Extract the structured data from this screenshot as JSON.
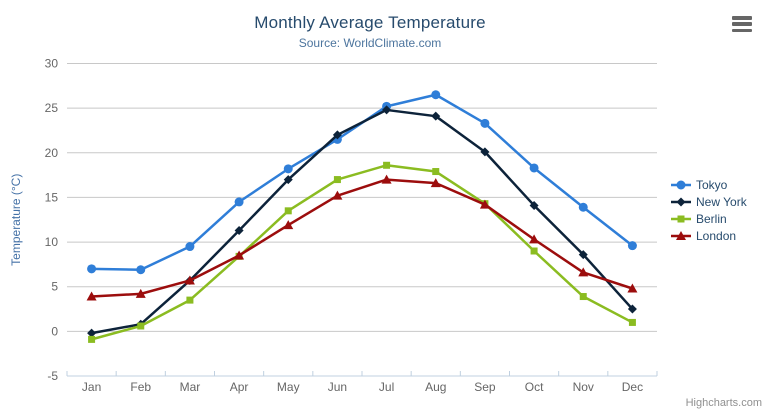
{
  "header": {
    "title": "Monthly Average Temperature",
    "subtitle": "Source: WorldClimate.com"
  },
  "credits": {
    "label": "Highcharts.com"
  },
  "context_menu": {
    "icon": "hamburger-icon"
  },
  "theme": {
    "background": "#ffffff",
    "title_color": "#274b6d",
    "subtitle_color": "#4d759e",
    "axis_label_color": "#666666",
    "yaxis_title_color": "#4572a7",
    "grid_color": "#c8c8c8",
    "axis_line_color": "#c0d0e0",
    "legend_text_color": "#274b6d",
    "credits_color": "#909090",
    "menu_icon_color": "#666666"
  },
  "chart_data": {
    "type": "line",
    "title": "Monthly Average Temperature",
    "subtitle": "Source: WorldClimate.com",
    "categories": [
      "Jan",
      "Feb",
      "Mar",
      "Apr",
      "May",
      "Jun",
      "Jul",
      "Aug",
      "Sep",
      "Oct",
      "Nov",
      "Dec"
    ],
    "xlabel": "",
    "ylabel": "Temperature (°C)",
    "ylim": [
      -5,
      30
    ],
    "ytick_interval": 5,
    "yticks": [
      -5,
      0,
      5,
      10,
      15,
      20,
      25,
      30
    ],
    "grid": true,
    "legend_position": "right",
    "series": [
      {
        "name": "Tokyo",
        "color": "#2f7ed8",
        "marker": "circle",
        "values": [
          7.0,
          6.9,
          9.5,
          14.5,
          18.2,
          21.5,
          25.2,
          26.5,
          23.3,
          18.3,
          13.9,
          9.6
        ]
      },
      {
        "name": "New York",
        "color": "#0d233a",
        "marker": "diamond",
        "values": [
          -0.2,
          0.8,
          5.7,
          11.3,
          17.0,
          22.0,
          24.8,
          24.1,
          20.1,
          14.1,
          8.6,
          2.5
        ]
      },
      {
        "name": "Berlin",
        "color": "#8bbc21",
        "marker": "square",
        "values": [
          -0.9,
          0.6,
          3.5,
          8.4,
          13.5,
          17.0,
          18.6,
          17.9,
          14.3,
          9.0,
          3.9,
          1.0
        ]
      },
      {
        "name": "London",
        "color": "#9c0d0d",
        "marker": "triangle",
        "values": [
          3.9,
          4.2,
          5.7,
          8.5,
          11.9,
          15.2,
          17.0,
          16.6,
          14.2,
          10.3,
          6.6,
          4.8
        ]
      }
    ]
  }
}
